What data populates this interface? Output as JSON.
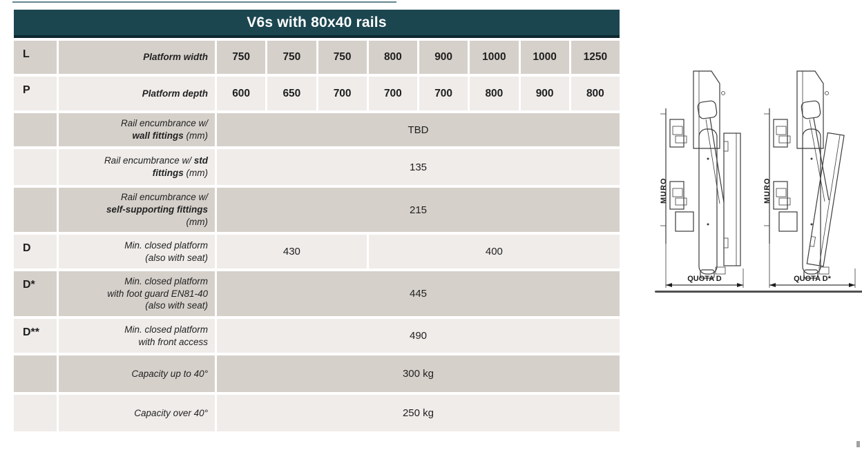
{
  "title": "V6s with 80x40 rails",
  "colors": {
    "title_bg": "#1b4650",
    "title_edge": "#0d2830",
    "row_gray": "#d5d0ca",
    "row_light": "#efecea"
  },
  "table": {
    "rows": [
      {
        "letter": "L",
        "label": [
          {
            "t": "Platform width",
            "b": true
          }
        ],
        "values": [
          "750",
          "750",
          "750",
          "800",
          "900",
          "1000",
          "1000",
          "1250"
        ],
        "shade": "gray"
      },
      {
        "letter": "P",
        "label": [
          {
            "t": "Platform depth",
            "b": true
          }
        ],
        "values": [
          "600",
          "650",
          "700",
          "700",
          "700",
          "800",
          "900",
          "800"
        ],
        "shade": "light"
      },
      {
        "letter": "",
        "label": [
          {
            "t": "Rail encumbrance w/\n"
          },
          {
            "t": "wall fittings",
            "b": true
          },
          {
            "t": " (mm)"
          }
        ],
        "merged": [
          {
            "text": "TBD",
            "span": 8
          }
        ],
        "shade": "gray"
      },
      {
        "letter": "",
        "label": [
          {
            "t": "Rail encumbrance w/ "
          },
          {
            "t": "std",
            "b": true
          },
          {
            "t": "\n"
          },
          {
            "t": "fittings",
            "b": true
          },
          {
            "t": " (mm)"
          }
        ],
        "merged": [
          {
            "text": "135",
            "span": 8
          }
        ],
        "shade": "light"
      },
      {
        "letter": "",
        "label": [
          {
            "t": "Rail encumbrance w/\n"
          },
          {
            "t": "self-supporting fittings",
            "b": true
          },
          {
            "t": "\n(mm)"
          }
        ],
        "merged": [
          {
            "text": "215",
            "span": 8
          }
        ],
        "shade": "gray"
      },
      {
        "letter": "D",
        "label": [
          {
            "t": "Min. closed platform\n(also with seat)"
          }
        ],
        "merged": [
          {
            "text": "430",
            "span": 3
          },
          {
            "text": "400",
            "span": 5
          }
        ],
        "shade": "light"
      },
      {
        "letter": "D*",
        "label": [
          {
            "t": "Min. closed platform\nwith foot guard EN81-40\n(also with seat)"
          }
        ],
        "merged": [
          {
            "text": "445",
            "span": 8
          }
        ],
        "shade": "gray"
      },
      {
        "letter": "D**",
        "label": [
          {
            "t": "Min. closed platform\nwith front access"
          }
        ],
        "merged": [
          {
            "text": "490",
            "span": 8
          }
        ],
        "shade": "light"
      },
      {
        "letter": "",
        "label": [
          {
            "t": "Capacity up to 40°"
          }
        ],
        "merged": [
          {
            "text": "300 kg",
            "span": 8
          }
        ],
        "shade": "gray"
      },
      {
        "letter": "",
        "label": [
          {
            "t": "Capacity over 40°"
          }
        ],
        "merged": [
          {
            "text": "250 kg",
            "span": 8
          }
        ],
        "shade": "light"
      }
    ]
  },
  "diagrams": {
    "wall_label": "MURO",
    "quota_d_label": "QUOTA D",
    "quota_d_star_label": "QUOTA D*"
  }
}
